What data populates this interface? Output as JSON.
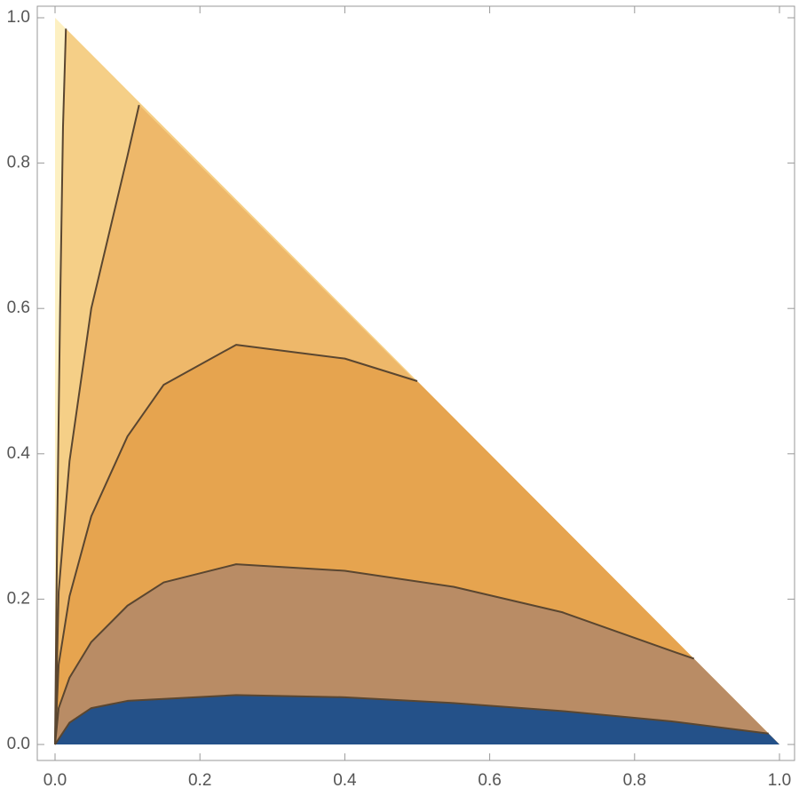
{
  "chart_data": {
    "type": "contour",
    "xlim": [
      0,
      1
    ],
    "ylim": [
      0,
      1
    ],
    "xticks": [
      {
        "value": 0,
        "label": "0.0"
      },
      0.2,
      0.4,
      0.6,
      0.8,
      {
        "value": 1,
        "label": "1.0"
      }
    ],
    "yticks": [
      {
        "value": 0,
        "label": "0.0"
      },
      0.2,
      0.4,
      0.6,
      0.8,
      {
        "value": 1,
        "label": "1.0"
      }
    ],
    "domain_color": "#fdf0c2",
    "line_color": "#5a4630",
    "contours": [
      {
        "fill": "#f5cf87",
        "x": [
          0,
          0.003,
          0.007,
          0.011,
          0.015
        ],
        "y": [
          0,
          0.3,
          0.6,
          0.85,
          0.985
        ]
      },
      {
        "fill": "#eeb86a",
        "x": [
          0,
          0.005,
          0.02,
          0.05,
          0.1,
          0.116
        ],
        "y": [
          0,
          0.21,
          0.39,
          0.6,
          0.81,
          0.88
        ]
      },
      {
        "fill": "#e6a44f",
        "x": [
          0,
          0.005,
          0.02,
          0.05,
          0.1,
          0.15,
          0.25,
          0.4,
          0.5
        ],
        "y": [
          0,
          0.11,
          0.204,
          0.314,
          0.424,
          0.495,
          0.55,
          0.531,
          0.5
        ]
      },
      {
        "fill": "#b98c65",
        "x": [
          0,
          0.005,
          0.02,
          0.05,
          0.1,
          0.15,
          0.25,
          0.4,
          0.55,
          0.7,
          0.85,
          0.882
        ],
        "y": [
          0,
          0.05,
          0.092,
          0.141,
          0.191,
          0.223,
          0.248,
          0.239,
          0.217,
          0.182,
          0.129,
          0.118
        ]
      },
      {
        "fill": "#245189",
        "x": [
          0,
          0.02,
          0.05,
          0.1,
          0.25,
          0.4,
          0.55,
          0.7,
          0.85,
          0.985
        ],
        "y": [
          0,
          0.03,
          0.05,
          0.06,
          0.068,
          0.065,
          0.057,
          0.046,
          0.032,
          0.015
        ]
      }
    ]
  }
}
